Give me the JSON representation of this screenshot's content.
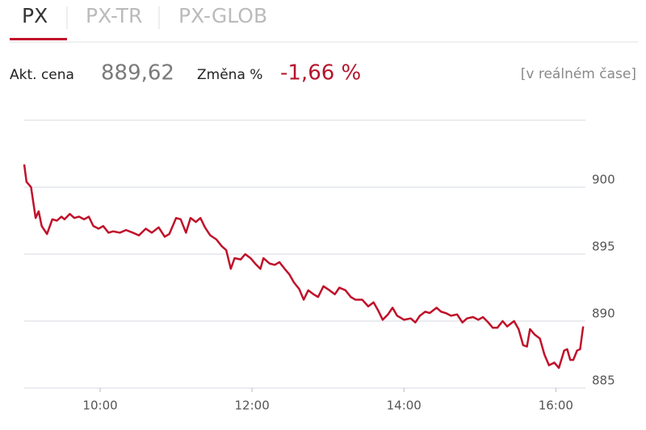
{
  "tabs": [
    {
      "label": "PX",
      "active": true
    },
    {
      "label": "PX-TR",
      "active": false
    },
    {
      "label": "PX-GLOB",
      "active": false
    }
  ],
  "quote": {
    "price_label": "Akt. cena",
    "price": "889,62",
    "change_label": "Změna %",
    "change": "-1,66 %",
    "note": "[v reálném čase]"
  },
  "chart_data": {
    "type": "line",
    "x": [
      9.0,
      9.03,
      9.09,
      9.15,
      9.19,
      9.23,
      9.3,
      9.37,
      9.43,
      9.49,
      9.53,
      9.6,
      9.66,
      9.72,
      9.79,
      9.85,
      9.91,
      9.98,
      10.04,
      10.11,
      10.17,
      10.26,
      10.34,
      10.43,
      10.51,
      10.6,
      10.68,
      10.77,
      10.85,
      10.91,
      11.0,
      11.06,
      11.13,
      11.19,
      11.26,
      11.32,
      11.38,
      11.45,
      11.53,
      11.6,
      11.66,
      11.72,
      11.77,
      11.85,
      11.91,
      11.98,
      12.04,
      12.11,
      12.15,
      12.23,
      12.3,
      12.36,
      12.43,
      12.49,
      12.55,
      12.62,
      12.68,
      12.74,
      12.81,
      12.87,
      12.94,
      13.02,
      13.09,
      13.15,
      13.23,
      13.3,
      13.36,
      13.45,
      13.53,
      13.6,
      13.66,
      13.72,
      13.79,
      13.85,
      13.91,
      14.0,
      14.09,
      14.15,
      14.21,
      14.28,
      14.34,
      14.43,
      14.49,
      14.55,
      14.62,
      14.7,
      14.77,
      14.83,
      14.91,
      14.98,
      15.04,
      15.11,
      15.17,
      15.23,
      15.3,
      15.36,
      15.45,
      15.51,
      15.57,
      15.62,
      15.66,
      15.72,
      15.79,
      15.85,
      15.91,
      15.98,
      16.04,
      16.11,
      16.15,
      16.19,
      16.23,
      16.28,
      16.32,
      16.36
    ],
    "series": [
      {
        "name": "PX",
        "color": "#c0112a",
        "values": [
          901.7,
          900.4,
          900.0,
          897.7,
          898.2,
          897.1,
          896.5,
          897.6,
          897.5,
          897.8,
          897.6,
          898.0,
          897.7,
          897.8,
          897.6,
          897.8,
          897.1,
          896.9,
          897.1,
          896.6,
          896.7,
          896.6,
          896.8,
          896.6,
          896.4,
          896.9,
          896.6,
          897.0,
          896.3,
          896.5,
          897.7,
          897.6,
          896.6,
          897.7,
          897.4,
          897.7,
          897.0,
          896.4,
          896.1,
          895.6,
          895.3,
          893.9,
          894.7,
          894.6,
          895.0,
          894.7,
          894.3,
          893.9,
          894.7,
          894.3,
          894.2,
          894.4,
          893.9,
          893.5,
          892.9,
          892.4,
          891.6,
          892.3,
          892.0,
          891.8,
          892.6,
          892.3,
          892.0,
          892.5,
          892.3,
          891.8,
          891.6,
          891.6,
          891.1,
          891.4,
          890.8,
          890.1,
          890.5,
          891.0,
          890.4,
          890.1,
          890.2,
          889.9,
          890.4,
          890.7,
          890.6,
          891.0,
          890.7,
          890.6,
          890.4,
          890.5,
          889.9,
          890.2,
          890.3,
          890.1,
          890.3,
          889.9,
          889.5,
          889.5,
          890.0,
          889.6,
          890.0,
          889.4,
          888.2,
          888.1,
          889.4,
          889.0,
          888.7,
          887.5,
          886.7,
          886.9,
          886.5,
          887.8,
          887.9,
          887.1,
          887.1,
          887.8,
          887.9,
          889.6
        ]
      }
    ],
    "xlim": [
      9,
      16.39
    ],
    "xticks": [
      {
        "value": 10,
        "label": "10:00"
      },
      {
        "value": 12,
        "label": "12:00"
      },
      {
        "value": 14,
        "label": "14:00"
      },
      {
        "value": 16,
        "label": "16:00"
      }
    ],
    "ylim": [
      885,
      905
    ],
    "yticks": [
      885,
      890,
      895,
      900
    ],
    "grid": true
  }
}
